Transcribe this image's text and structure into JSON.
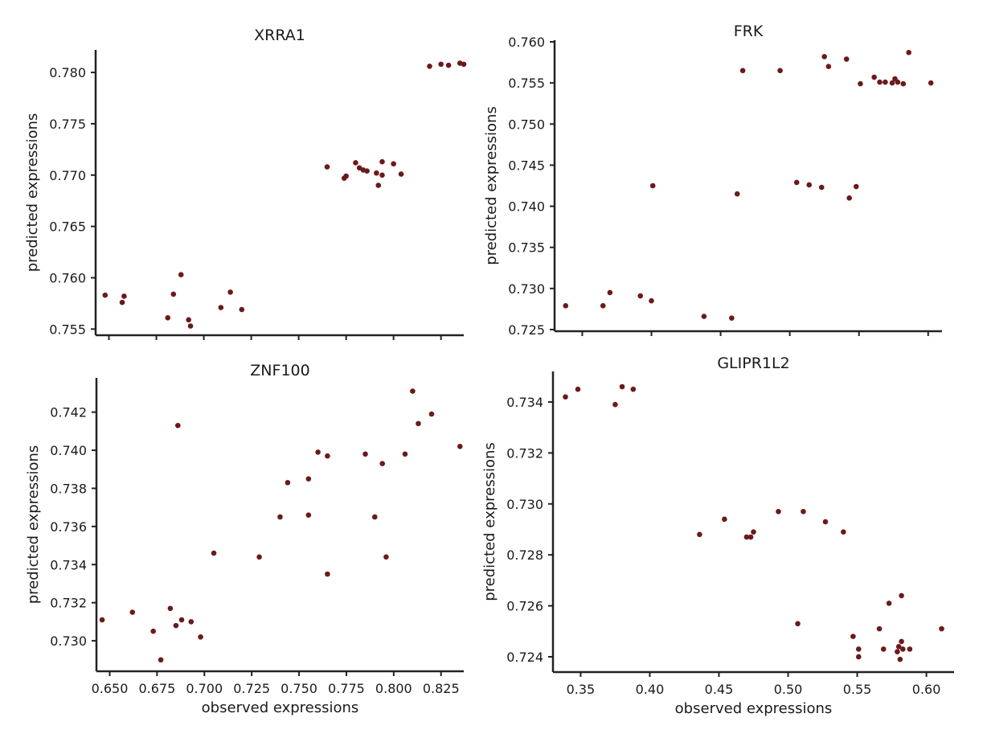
{
  "chart_data": [
    {
      "type": "scatter",
      "title": "XRRA1",
      "xlabel": "",
      "ylabel": "predicted expressions",
      "xlim": [
        0.643,
        0.837
      ],
      "ylim": [
        0.7544,
        0.7822
      ],
      "xticks": [],
      "yticks": [
        "0.755",
        "0.760",
        "0.765",
        "0.770",
        "0.775",
        "0.780"
      ],
      "xtick_marks": [
        0.65,
        0.675,
        0.7,
        0.725,
        0.75,
        0.775,
        0.8,
        0.825
      ],
      "color": "#6b1a1a",
      "points": [
        [
          0.648,
          0.7583
        ],
        [
          0.657,
          0.7576
        ],
        [
          0.658,
          0.7582
        ],
        [
          0.681,
          0.7561
        ],
        [
          0.684,
          0.7584
        ],
        [
          0.688,
          0.7603
        ],
        [
          0.692,
          0.7559
        ],
        [
          0.693,
          0.7553
        ],
        [
          0.709,
          0.7571
        ],
        [
          0.714,
          0.7586
        ],
        [
          0.72,
          0.7569
        ],
        [
          0.765,
          0.7708
        ],
        [
          0.774,
          0.7697
        ],
        [
          0.775,
          0.7699
        ],
        [
          0.78,
          0.7712
        ],
        [
          0.782,
          0.7707
        ],
        [
          0.784,
          0.7705
        ],
        [
          0.786,
          0.7704
        ],
        [
          0.791,
          0.7702
        ],
        [
          0.792,
          0.769
        ],
        [
          0.794,
          0.7713
        ],
        [
          0.794,
          0.77
        ],
        [
          0.8,
          0.7711
        ],
        [
          0.804,
          0.7701
        ],
        [
          0.819,
          0.7806
        ],
        [
          0.825,
          0.7808
        ],
        [
          0.829,
          0.7807
        ],
        [
          0.835,
          0.7809
        ],
        [
          0.837,
          0.7808
        ]
      ]
    },
    {
      "type": "scatter",
      "title": "FRK",
      "xlabel": "",
      "ylabel": "predicted expressions",
      "xlim": [
        0.33,
        0.61
      ],
      "ylim": [
        0.7248,
        0.7602
      ],
      "xticks": [],
      "yticks": [
        "0.725",
        "0.730",
        "0.735",
        "0.740",
        "0.745",
        "0.750",
        "0.755",
        "0.760"
      ],
      "xtick_marks": [
        0.35,
        0.4,
        0.45,
        0.5,
        0.55,
        0.6
      ],
      "color": "#6b1a1a",
      "points": [
        [
          0.338,
          0.7279
        ],
        [
          0.365,
          0.7279
        ],
        [
          0.37,
          0.7295
        ],
        [
          0.392,
          0.7291
        ],
        [
          0.4,
          0.7285
        ],
        [
          0.401,
          0.7425
        ],
        [
          0.438,
          0.7266
        ],
        [
          0.458,
          0.7264
        ],
        [
          0.462,
          0.7415
        ],
        [
          0.466,
          0.7565
        ],
        [
          0.493,
          0.7565
        ],
        [
          0.505,
          0.7429
        ],
        [
          0.514,
          0.7426
        ],
        [
          0.523,
          0.7423
        ],
        [
          0.525,
          0.7582
        ],
        [
          0.528,
          0.757
        ],
        [
          0.541,
          0.7579
        ],
        [
          0.543,
          0.741
        ],
        [
          0.548,
          0.7424
        ],
        [
          0.551,
          0.7549
        ],
        [
          0.561,
          0.7557
        ],
        [
          0.565,
          0.7551
        ],
        [
          0.569,
          0.7551
        ],
        [
          0.574,
          0.755
        ],
        [
          0.576,
          0.7555
        ],
        [
          0.578,
          0.7551
        ],
        [
          0.582,
          0.7549
        ],
        [
          0.586,
          0.7587
        ],
        [
          0.602,
          0.755
        ]
      ]
    },
    {
      "type": "scatter",
      "title": "ZNF100",
      "xlabel": "observed expressions",
      "ylabel": "predicted expressions",
      "xlim": [
        0.643,
        0.837
      ],
      "ylim": [
        0.7284,
        0.7438
      ],
      "xticks": [
        "0.650",
        "0.675",
        "0.700",
        "0.725",
        "0.750",
        "0.775",
        "0.800",
        "0.825"
      ],
      "yticks": [
        "0.730",
        "0.732",
        "0.734",
        "0.736",
        "0.738",
        "0.740",
        "0.742"
      ],
      "color": "#6b1a1a",
      "points": [
        [
          0.646,
          0.7311
        ],
        [
          0.662,
          0.7315
        ],
        [
          0.673,
          0.7305
        ],
        [
          0.677,
          0.729
        ],
        [
          0.682,
          0.7317
        ],
        [
          0.685,
          0.7308
        ],
        [
          0.686,
          0.7413
        ],
        [
          0.688,
          0.7311
        ],
        [
          0.693,
          0.731
        ],
        [
          0.698,
          0.7302
        ],
        [
          0.705,
          0.7346
        ],
        [
          0.729,
          0.7344
        ],
        [
          0.74,
          0.7365
        ],
        [
          0.744,
          0.7383
        ],
        [
          0.755,
          0.7366
        ],
        [
          0.755,
          0.7385
        ],
        [
          0.76,
          0.7399
        ],
        [
          0.765,
          0.7397
        ],
        [
          0.765,
          0.7335
        ],
        [
          0.785,
          0.7398
        ],
        [
          0.79,
          0.7365
        ],
        [
          0.794,
          0.7393
        ],
        [
          0.796,
          0.7344
        ],
        [
          0.806,
          0.7398
        ],
        [
          0.81,
          0.7431
        ],
        [
          0.813,
          0.7414
        ],
        [
          0.82,
          0.7419
        ],
        [
          0.835,
          0.7402
        ]
      ]
    },
    {
      "type": "scatter",
      "title": "GLIPR1L2",
      "xlabel": "observed expressions",
      "ylabel": "predicted expressions",
      "xlim": [
        0.33,
        0.62
      ],
      "ylim": [
        0.7234,
        0.7352
      ],
      "xticks": [
        "0.35",
        "0.40",
        "0.45",
        "0.50",
        "0.55",
        "0.60"
      ],
      "yticks": [
        "0.724",
        "0.726",
        "0.728",
        "0.730",
        "0.732",
        "0.734"
      ],
      "color": "#6b1a1a",
      "points": [
        [
          0.339,
          0.7342
        ],
        [
          0.348,
          0.7345
        ],
        [
          0.375,
          0.7339
        ],
        [
          0.38,
          0.7346
        ],
        [
          0.388,
          0.7345
        ],
        [
          0.436,
          0.7288
        ],
        [
          0.454,
          0.7294
        ],
        [
          0.47,
          0.7287
        ],
        [
          0.473,
          0.7287
        ],
        [
          0.475,
          0.7289
        ],
        [
          0.493,
          0.7297
        ],
        [
          0.507,
          0.7253
        ],
        [
          0.511,
          0.7297
        ],
        [
          0.527,
          0.7293
        ],
        [
          0.54,
          0.7289
        ],
        [
          0.547,
          0.7248
        ],
        [
          0.551,
          0.7243
        ],
        [
          0.551,
          0.724
        ],
        [
          0.566,
          0.7251
        ],
        [
          0.569,
          0.7243
        ],
        [
          0.573,
          0.7261
        ],
        [
          0.579,
          0.7242
        ],
        [
          0.58,
          0.7244
        ],
        [
          0.581,
          0.7239
        ],
        [
          0.582,
          0.7264
        ],
        [
          0.582,
          0.7246
        ],
        [
          0.583,
          0.7243
        ],
        [
          0.588,
          0.7243
        ],
        [
          0.611,
          0.7251
        ]
      ]
    }
  ]
}
